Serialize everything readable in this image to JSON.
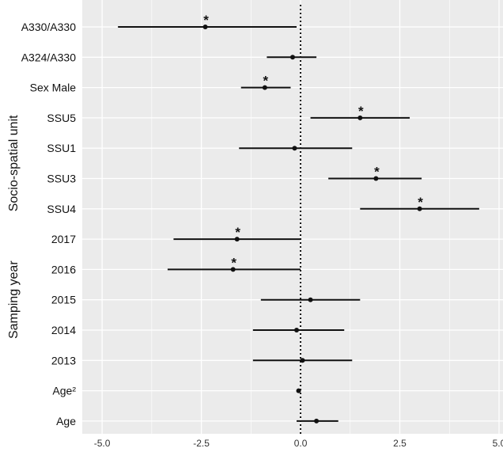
{
  "chart_data": {
    "type": "forest",
    "title": "",
    "xlabel": "",
    "ylabel": "",
    "xlim": [
      -5.5,
      5.1
    ],
    "x_ticks": [
      -5.0,
      -2.5,
      0.0,
      2.5,
      5.0
    ],
    "x_tick_labels": [
      "-5.0",
      "-2.5",
      "0.0",
      "2.5",
      "5.0"
    ],
    "reference_line": 0,
    "grid": true,
    "colors": {
      "panel": "#ebebeb",
      "grid": "#ffffff",
      "mark": "#111111"
    },
    "group_labels": [
      {
        "label": "Socio-spatial unit",
        "from": "SSU5",
        "to": "SSU4"
      },
      {
        "label": "Samping year",
        "from": "2017",
        "to": "2013"
      }
    ],
    "rows": [
      {
        "label": "A330/A330",
        "estimate": -2.4,
        "low": -4.6,
        "high": -0.1,
        "sig": "*"
      },
      {
        "label": "A324/A330",
        "estimate": -0.2,
        "low": -0.85,
        "high": 0.4,
        "sig": ""
      },
      {
        "label": "Sex Male",
        "estimate": -0.9,
        "low": -1.5,
        "high": -0.25,
        "sig": "*"
      },
      {
        "label": "SSU5",
        "estimate": 1.5,
        "low": 0.25,
        "high": 2.75,
        "sig": "*"
      },
      {
        "label": "SSU1",
        "estimate": -0.15,
        "low": -1.55,
        "high": 1.3,
        "sig": ""
      },
      {
        "label": "SSU3",
        "estimate": 1.9,
        "low": 0.7,
        "high": 3.05,
        "sig": "*"
      },
      {
        "label": "SSU4",
        "estimate": 3.0,
        "low": 1.5,
        "high": 4.5,
        "sig": "*"
      },
      {
        "label": "2017",
        "estimate": -1.6,
        "low": -3.2,
        "high": 0.0,
        "sig": "*"
      },
      {
        "label": "2016",
        "estimate": -1.7,
        "low": -3.35,
        "high": 0.0,
        "sig": "*"
      },
      {
        "label": "2015",
        "estimate": 0.25,
        "low": -1.0,
        "high": 1.5,
        "sig": ""
      },
      {
        "label": "2014",
        "estimate": -0.1,
        "low": -1.2,
        "high": 1.1,
        "sig": ""
      },
      {
        "label": "2013",
        "estimate": 0.05,
        "low": -1.2,
        "high": 1.3,
        "sig": ""
      },
      {
        "label": "Age²",
        "estimate": -0.05,
        "low": -0.1,
        "high": 0.0,
        "sig": ""
      },
      {
        "label": "Age",
        "estimate": 0.4,
        "low": -0.1,
        "high": 0.95,
        "sig": ""
      }
    ]
  }
}
